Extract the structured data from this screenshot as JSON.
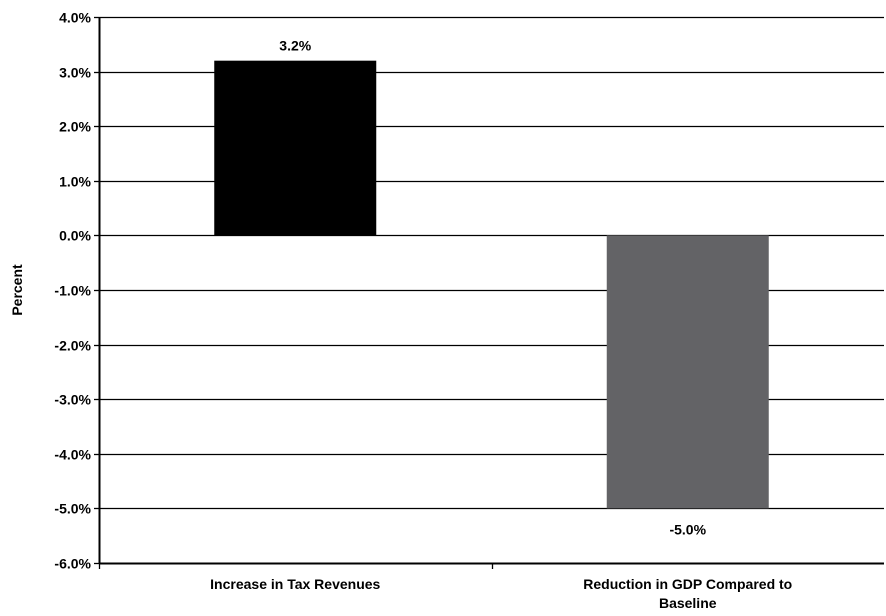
{
  "chart_data": {
    "type": "bar",
    "categories": [
      [
        "Increase in Tax Revenues"
      ],
      [
        "Reduction in GDP Compared to",
        "Baseline"
      ]
    ],
    "values": [
      3.2,
      -5.0
    ],
    "data_labels": [
      "3.2%",
      "-5.0%"
    ],
    "bar_colors": [
      "#000000",
      "#636366"
    ],
    "ylabel": "Percent",
    "ylim": [
      -6.0,
      4.0
    ],
    "yticks": [
      4.0,
      3.0,
      2.0,
      1.0,
      0.0,
      -1.0,
      -2.0,
      -3.0,
      -4.0,
      -5.0,
      -6.0
    ],
    "ytick_labels": [
      "4.0%",
      "3.0%",
      "2.0%",
      "1.0%",
      "0.0%",
      "-1.0%",
      "-2.0%",
      "-3.0%",
      "-4.0%",
      "-5.0%",
      "-6.0%"
    ],
    "grid": true,
    "legend": "none"
  }
}
